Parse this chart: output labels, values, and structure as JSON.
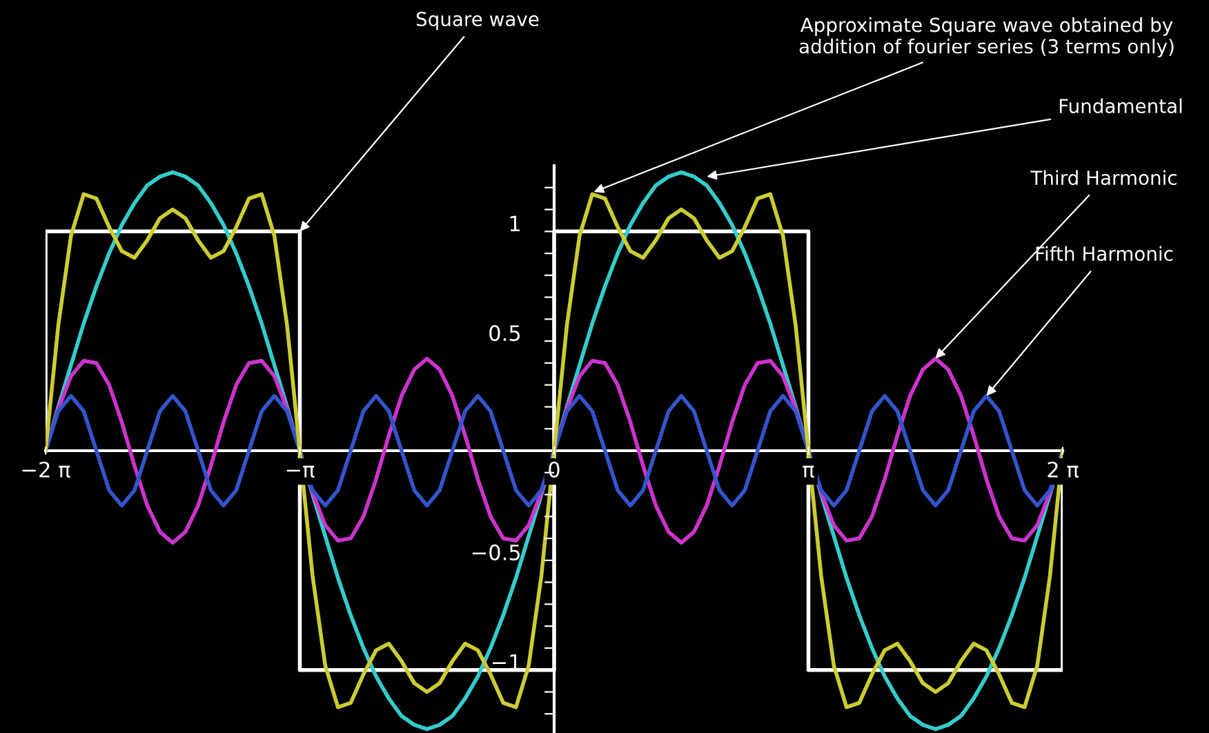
{
  "chart_data": {
    "type": "line",
    "x": [
      -6.2832,
      -6.1261,
      -5.969,
      -5.8119,
      -5.6549,
      -5.4978,
      -5.3407,
      -5.1836,
      -5.0265,
      -4.8695,
      -4.7124,
      -4.5553,
      -4.3982,
      -4.2412,
      -4.0841,
      -3.927,
      -3.7699,
      -3.6128,
      -3.4558,
      -3.2987,
      -3.1416,
      -2.9845,
      -2.8274,
      -2.6704,
      -2.5133,
      -2.3562,
      -2.1991,
      -2.042,
      -1.885,
      -1.7279,
      -1.5708,
      -1.4137,
      -1.2566,
      -1.0996,
      -0.9425,
      -0.7854,
      -0.6283,
      -0.4712,
      -0.3142,
      -0.1571,
      0,
      0.1571,
      0.3142,
      0.4712,
      0.6283,
      0.7854,
      0.9425,
      1.0996,
      1.2566,
      1.4137,
      1.5708,
      1.7279,
      1.885,
      2.042,
      2.1991,
      2.3562,
      2.5133,
      2.6704,
      2.8274,
      2.9845,
      3.1416,
      3.2987,
      3.4558,
      3.6128,
      3.7699,
      3.927,
      4.0841,
      4.2412,
      4.3982,
      4.5553,
      4.7124,
      4.8695,
      5.0265,
      5.1836,
      5.3407,
      5.4978,
      5.6549,
      5.8119,
      5.969,
      6.1261,
      6.2832
    ],
    "series": [
      {
        "color": "#ffffff",
        "x": [
          -6.2832,
          -6.2832,
          -3.1416,
          -3.1416,
          0,
          0,
          3.1416,
          3.1416,
          6.2832,
          6.2832
        ],
        "values": [
          0,
          1,
          1,
          -1,
          -1,
          1,
          1,
          -1,
          -1,
          0
        ]
      },
      {
        "color": "#33cccc",
        "values": [
          0,
          0.2,
          0.39,
          0.58,
          0.75,
          0.9,
          1.03,
          1.13,
          1.21,
          1.25,
          1.27,
          1.25,
          1.21,
          1.13,
          1.03,
          0.9,
          0.75,
          0.58,
          0.39,
          0.2,
          0,
          -0.2,
          -0.39,
          -0.58,
          -0.75,
          -0.9,
          -1.03,
          -1.13,
          -1.21,
          -1.25,
          -1.27,
          -1.25,
          -1.21,
          -1.13,
          -1.03,
          -0.9,
          -0.75,
          -0.58,
          -0.39,
          -0.2,
          0,
          0.2,
          0.39,
          0.58,
          0.75,
          0.9,
          1.03,
          1.13,
          1.21,
          1.25,
          1.27,
          1.25,
          1.21,
          1.13,
          1.03,
          0.9,
          0.75,
          0.58,
          0.39,
          0.2,
          0,
          -0.2,
          -0.39,
          -0.58,
          -0.75,
          -0.9,
          -1.03,
          -1.13,
          -1.21,
          -1.25,
          -1.27,
          -1.25,
          -1.21,
          -1.13,
          -1.03,
          -0.9,
          -0.75,
          -0.58,
          -0.39,
          -0.2,
          0
        ]
      },
      {
        "color": "#cc33cc",
        "values": [
          0,
          0.19,
          0.34,
          0.41,
          0.4,
          0.3,
          0.13,
          -0.07,
          -0.25,
          -0.37,
          -0.42,
          -0.37,
          -0.25,
          -0.07,
          0.13,
          0.3,
          0.4,
          0.41,
          0.34,
          0.19,
          0,
          -0.19,
          -0.34,
          -0.41,
          -0.4,
          -0.3,
          -0.13,
          0.07,
          0.25,
          0.37,
          0.42,
          0.37,
          0.25,
          0.07,
          -0.13,
          -0.3,
          -0.4,
          -0.41,
          -0.34,
          -0.19,
          0,
          0.19,
          0.34,
          0.41,
          0.4,
          0.3,
          0.13,
          -0.07,
          -0.25,
          -0.37,
          -0.42,
          -0.37,
          -0.25,
          -0.07,
          0.13,
          0.3,
          0.4,
          0.41,
          0.34,
          0.19,
          0,
          -0.19,
          -0.34,
          -0.41,
          -0.4,
          -0.3,
          -0.13,
          0.07,
          0.25,
          0.37,
          0.42,
          0.37,
          0.25,
          0.07,
          -0.13,
          -0.3,
          -0.4,
          -0.41,
          -0.34,
          -0.19,
          0
        ]
      },
      {
        "color": "#3355cc",
        "values": [
          0,
          0.18,
          0.25,
          0.18,
          0,
          -0.18,
          -0.25,
          -0.18,
          0,
          0.18,
          0.25,
          0.18,
          0,
          -0.18,
          -0.25,
          -0.18,
          0,
          0.18,
          0.25,
          0.18,
          0,
          -0.18,
          -0.25,
          -0.18,
          0,
          0.18,
          0.25,
          0.18,
          0,
          -0.18,
          -0.25,
          -0.18,
          0,
          0.18,
          0.25,
          0.18,
          0,
          -0.18,
          -0.25,
          -0.18,
          0,
          0.18,
          0.25,
          0.18,
          0,
          -0.18,
          -0.25,
          -0.18,
          0,
          0.18,
          0.25,
          0.18,
          0,
          -0.18,
          -0.25,
          -0.18,
          0,
          0.18,
          0.25,
          0.18,
          0,
          -0.18,
          -0.25,
          -0.18,
          0,
          0.18,
          0.25,
          0.18,
          0,
          -0.18,
          -0.25,
          -0.18,
          0,
          0.18,
          0.25,
          0.18,
          0,
          -0.18,
          -0.25,
          -0.18,
          0
        ]
      },
      {
        "color": "#cccc33",
        "values": [
          0,
          0.57,
          0.98,
          1.17,
          1.15,
          1.02,
          0.91,
          0.88,
          0.96,
          1.06,
          1.1,
          1.06,
          0.96,
          0.88,
          0.91,
          1.02,
          1.15,
          1.17,
          0.98,
          0.57,
          0,
          -0.57,
          -0.98,
          -1.17,
          -1.15,
          -1.02,
          -0.91,
          -0.88,
          -0.96,
          -1.06,
          -1.1,
          -1.06,
          -0.96,
          -0.88,
          -0.91,
          -1.02,
          -1.15,
          -1.17,
          -0.98,
          -0.57,
          0,
          0.57,
          0.98,
          1.17,
          1.15,
          1.02,
          0.91,
          0.88,
          0.96,
          1.06,
          1.1,
          1.06,
          0.96,
          0.88,
          0.91,
          1.02,
          1.15,
          1.17,
          0.98,
          0.57,
          0,
          -0.57,
          -0.98,
          -1.17,
          -1.15,
          -1.02,
          -0.91,
          -0.88,
          -0.96,
          -1.06,
          -1.1,
          -1.06,
          -0.96,
          -0.88,
          -0.91,
          -1.02,
          -1.15,
          -1.17,
          -0.98,
          -0.57,
          0
        ]
      }
    ],
    "xlim": [
      -6.2832,
      6.2832
    ],
    "xticks": [
      {
        "value": -6.2832,
        "label": "−2 π"
      },
      {
        "value": -3.1416,
        "label": "−π"
      },
      0,
      {
        "value": 3.1416,
        "label": "π"
      },
      {
        "value": 6.2832,
        "label": "2 π"
      }
    ],
    "ylim": [
      -1.3,
      1.3
    ],
    "yticks": [
      {
        "value": -1.2,
        "label": null
      },
      {
        "value": -1.1,
        "label": null
      },
      {
        "value": -1,
        "label": "−1"
      },
      {
        "value": -0.9,
        "label": null
      },
      {
        "value": -0.8,
        "label": null
      },
      {
        "value": -0.7,
        "label": null
      },
      {
        "value": -0.6,
        "label": null
      },
      {
        "value": -0.5,
        "label": "−0.5"
      },
      {
        "value": -0.4,
        "label": null
      },
      {
        "value": -0.3,
        "label": null
      },
      {
        "value": -0.2,
        "label": null
      },
      {
        "value": -0.1,
        "label": null
      },
      {
        "value": 0.1,
        "label": null
      },
      {
        "value": 0.2,
        "label": null
      },
      {
        "value": 0.3,
        "label": null
      },
      {
        "value": 0.4,
        "label": null
      },
      {
        "value": 0.5,
        "label": "0.5"
      },
      {
        "value": 0.6,
        "label": null
      },
      {
        "value": 0.7,
        "label": null
      },
      {
        "value": 0.8,
        "label": null
      },
      {
        "value": 0.9,
        "label": null
      },
      {
        "value": 1,
        "label": "1"
      },
      {
        "value": 1.1,
        "label": null
      },
      {
        "value": 1.2,
        "label": null
      }
    ],
    "annotations": [
      {
        "text": "Square wave",
        "x": -3.1416,
        "y": 1
      },
      {
        "text": "Approximate Square wave obtained by\naddition of fourier series (3 terms only)",
        "x": 0.49,
        "y": 1.18
      },
      {
        "text": "Fundamental",
        "x": 1.886,
        "y": 1.25
      },
      {
        "text": "Third Harmonic",
        "x": 4.71,
        "y": 0.42
      },
      {
        "text": "Fifth Harmonic",
        "x": 5.3407,
        "y": 0.25
      }
    ],
    "grid": false,
    "legend": false,
    "marker": "none",
    "line_style": "solid"
  }
}
